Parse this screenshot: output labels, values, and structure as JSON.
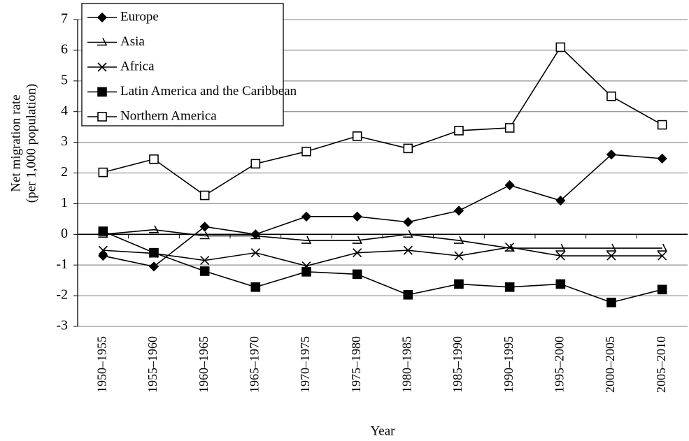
{
  "chart_data": {
    "type": "line",
    "x_label": "Year",
    "y_label": [
      "Net migration rate",
      "(per 1,000 population)"
    ],
    "categories": [
      "1950–1955",
      "1955–1960",
      "1960–1965",
      "1965–1970",
      "1970–1975",
      "1975–1980",
      "1980–1985",
      "1985–1990",
      "1990–1995",
      "1995–2000",
      "2000–2005",
      "2005–2010"
    ],
    "series": [
      {
        "name": "Europe",
        "color": "#000000",
        "marker": "diamond",
        "values": [
          -0.7,
          -1.05,
          0.25,
          0,
          0.58,
          0.58,
          0.4,
          0.77,
          1.6,
          1.1,
          2.6,
          2.47
        ]
      },
      {
        "name": "Asia",
        "color": "#000000",
        "marker": "hook",
        "values": [
          0,
          0.15,
          -0.05,
          -0.05,
          -0.2,
          -0.2,
          0,
          -0.2,
          -0.45,
          -0.45,
          -0.45,
          -0.45
        ]
      },
      {
        "name": "Africa",
        "color": "#000000",
        "marker": "cross",
        "values": [
          -0.52,
          -0.62,
          -0.85,
          -0.6,
          -1.03,
          -0.6,
          -0.52,
          -0.7,
          -0.42,
          -0.7,
          -0.7,
          -0.7
        ]
      },
      {
        "name": "Latin America and the Caribbean",
        "color": "#000000",
        "marker": "square-filled",
        "values": [
          0.1,
          -0.6,
          -1.2,
          -1.72,
          -1.22,
          -1.3,
          -1.97,
          -1.62,
          -1.72,
          -1.62,
          -2.22,
          -1.8
        ]
      },
      {
        "name": "Northern America",
        "color": "#000000",
        "marker": "square-open",
        "values": [
          2.02,
          2.45,
          1.27,
          2.3,
          2.7,
          3.2,
          2.8,
          3.38,
          3.47,
          6.1,
          4.5,
          3.57
        ]
      }
    ],
    "ylim": [
      -3,
      7
    ],
    "yticks": [
      -3,
      -2,
      -1,
      0,
      1,
      2,
      3,
      4,
      5,
      6,
      7
    ],
    "grid": true,
    "legend": "top-left"
  }
}
